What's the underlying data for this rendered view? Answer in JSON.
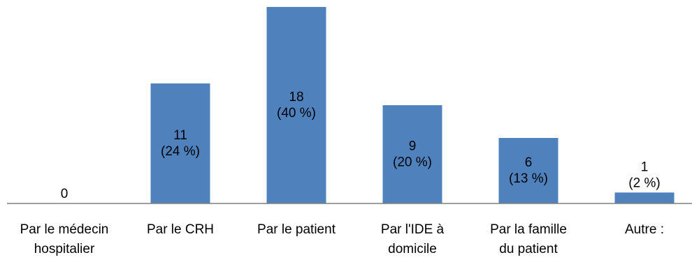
{
  "chart_data": {
    "type": "bar",
    "categories": [
      [
        "Par le médecin",
        "hospitalier"
      ],
      [
        "Par le CRH"
      ],
      [
        "Par le patient"
      ],
      [
        "Par l'IDE à",
        "domicile"
      ],
      [
        "Par la famille",
        "du patient"
      ],
      [
        "Autre :"
      ]
    ],
    "values": [
      0,
      11,
      18,
      9,
      6,
      1
    ],
    "data_labels": [
      [
        "0"
      ],
      [
        "11",
        "(24 %)"
      ],
      [
        "18",
        "(40 %)"
      ],
      [
        "9",
        "(20 %)"
      ],
      [
        "6",
        "(13 %)"
      ],
      [
        "1",
        "(2 %)"
      ]
    ],
    "title": "",
    "xlabel": "",
    "ylabel": "",
    "ylim": [
      0,
      18
    ],
    "grid": false,
    "legend": "none",
    "bar_color": "#4f81bd",
    "axis_color": "#7f7f7f"
  }
}
